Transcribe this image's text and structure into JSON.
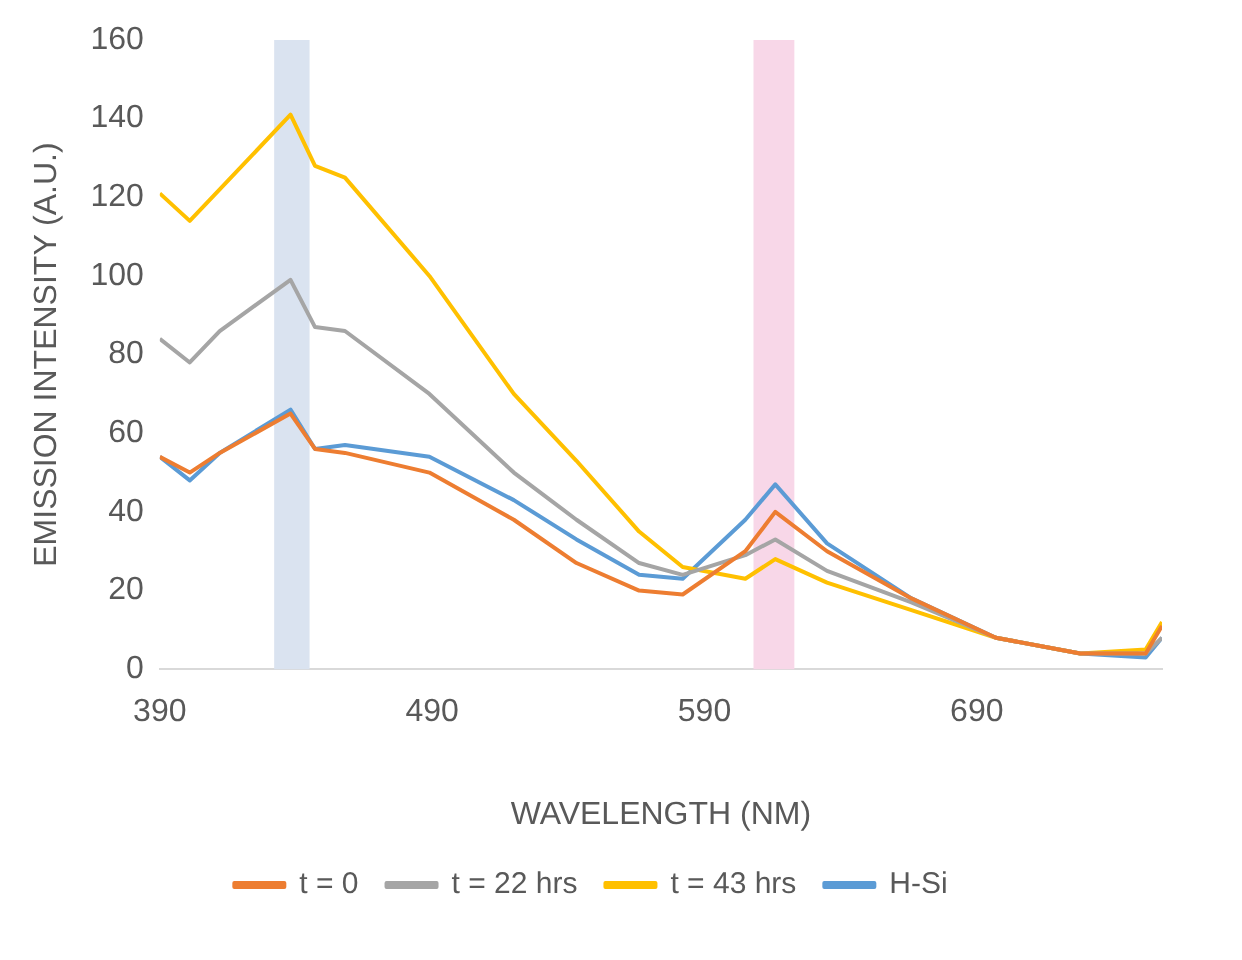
{
  "chart_data": {
    "type": "line",
    "xlabel": "WAVELENGTH (NM)",
    "ylabel": "EMISSION INTENSITY (A.U.)",
    "x": [
      390,
      401,
      412,
      438,
      447,
      458,
      489,
      520,
      543,
      566,
      582,
      605,
      616,
      635,
      666,
      697,
      728,
      752,
      758
    ],
    "xlim": [
      390,
      758
    ],
    "xticks": [
      390,
      490,
      590,
      690
    ],
    "ylim": [
      0,
      160
    ],
    "yticks": [
      0,
      20,
      40,
      60,
      80,
      100,
      120,
      140,
      160
    ],
    "grid": false,
    "legend": "bottom",
    "marker": "none",
    "line_style": "solid",
    "bands": [
      {
        "axis": "x",
        "from": 432,
        "to": 445,
        "color": "#dae3f0"
      },
      {
        "axis": "x",
        "from": 608,
        "to": 623,
        "color": "#f8d7e8"
      }
    ],
    "series": [
      {
        "name": "t = 0",
        "color": "#ed7d31",
        "values": [
          54,
          50,
          55,
          65,
          56,
          55,
          50,
          38,
          27,
          20,
          19,
          30,
          40,
          30,
          18,
          8,
          4,
          4,
          11
        ]
      },
      {
        "name": "t = 22 hrs",
        "color": "#a5a5a5",
        "values": [
          84,
          78,
          86,
          99,
          87,
          86,
          70,
          50,
          38,
          27,
          24,
          29,
          33,
          25,
          17,
          8,
          4,
          4,
          8
        ]
      },
      {
        "name": "t = 43 hrs",
        "color": "#ffc000",
        "values": [
          121,
          114,
          122,
          141,
          128,
          125,
          100,
          70,
          53,
          35,
          26,
          23,
          28,
          22,
          15,
          8,
          4,
          5,
          12
        ]
      },
      {
        "name": "H-Si",
        "color": "#5b9bd5",
        "values": [
          54,
          48,
          55,
          66,
          56,
          57,
          54,
          43,
          33,
          24,
          23,
          38,
          47,
          32,
          18,
          8,
          4,
          3,
          8
        ]
      }
    ]
  }
}
